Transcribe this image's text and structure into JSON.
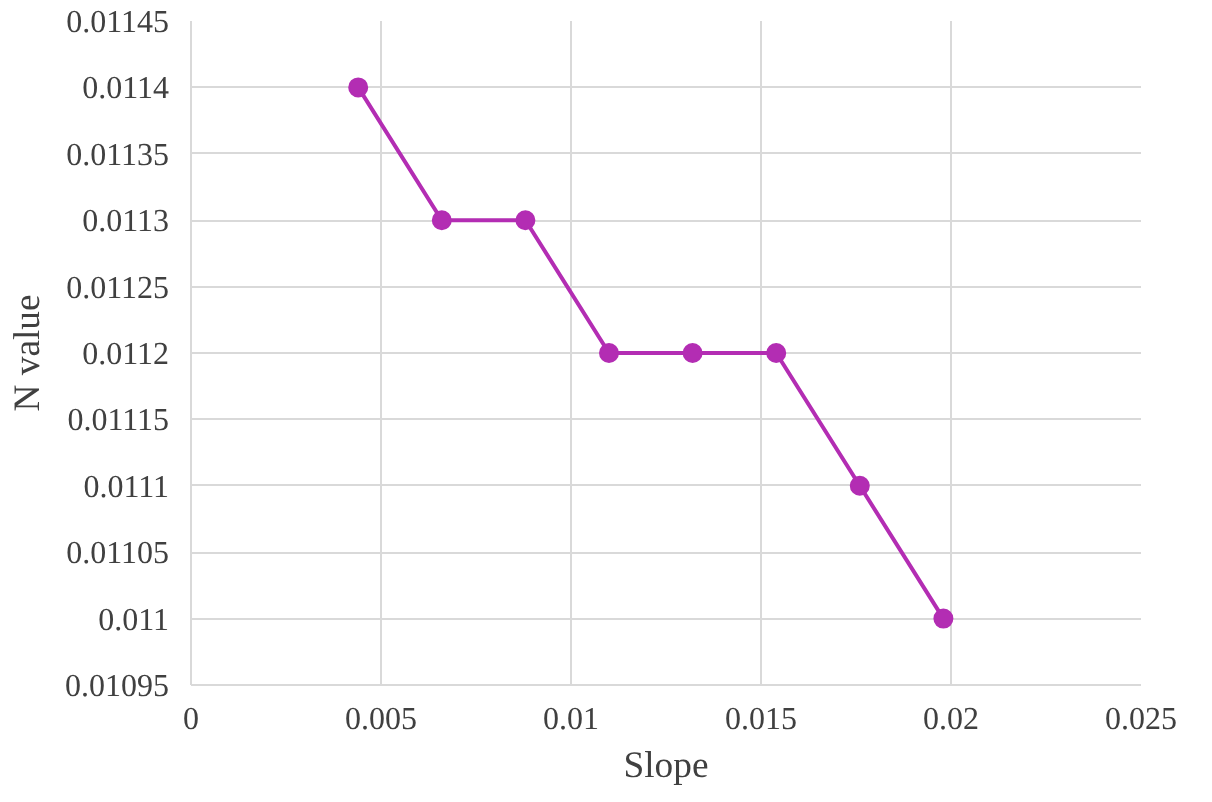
{
  "chart_data": {
    "type": "line",
    "xlabel": "Slope",
    "ylabel": "N value",
    "x": [
      0.0044,
      0.0066,
      0.0088,
      0.011,
      0.0132,
      0.0154,
      0.0176,
      0.0198
    ],
    "series": [
      {
        "color": "#b32db3",
        "values": [
          0.0114,
          0.0113,
          0.0113,
          0.0112,
          0.0112,
          0.0112,
          0.0111,
          0.011
        ]
      }
    ],
    "xlim": [
      0,
      0.025
    ],
    "xticks": [
      0,
      0.005,
      0.01,
      0.015,
      0.02,
      0.025
    ],
    "ylim": [
      0.01095,
      0.01145
    ],
    "yticks": [
      0.01095,
      0.011,
      0.01105,
      0.0111,
      0.01115,
      0.0112,
      0.01125,
      0.0113,
      0.01135,
      0.0114,
      0.01145
    ],
    "grid": true,
    "marker": "circle",
    "line_style": "solid"
  }
}
